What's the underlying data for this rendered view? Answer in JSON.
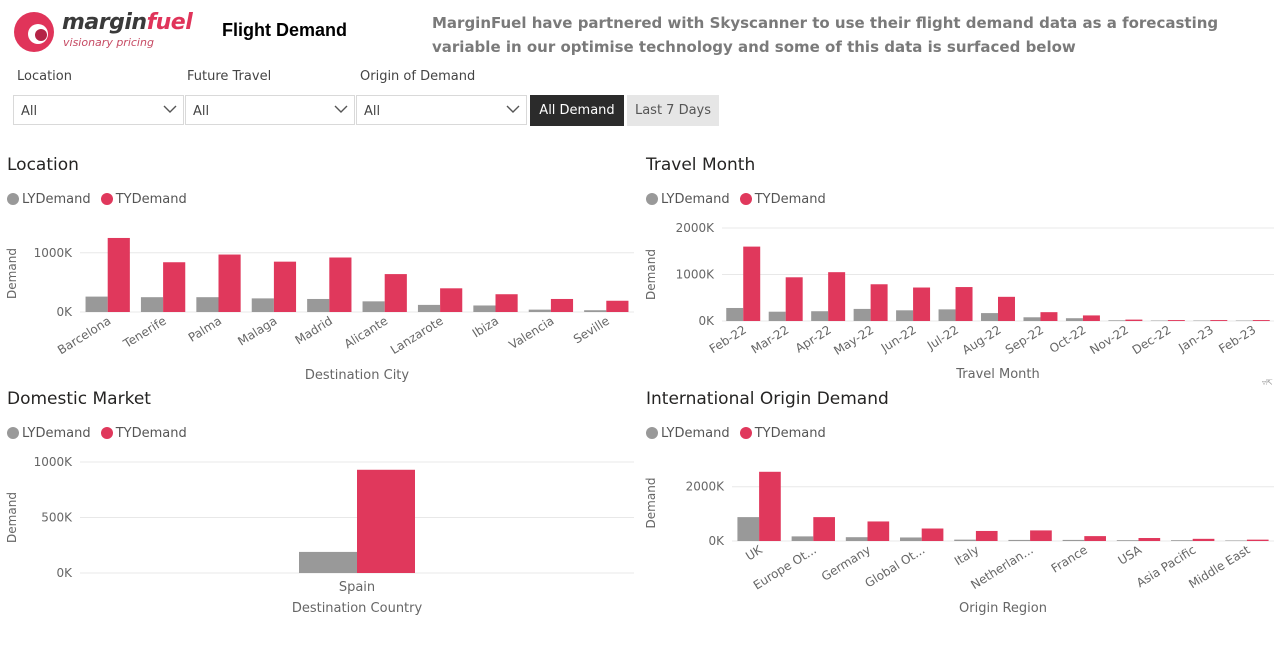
{
  "brand": {
    "name_part1": "margin",
    "name_part2": "fuel",
    "tagline": "visionary pricing",
    "color_primary": "#e0345a",
    "color_dark": "#3a3a3a"
  },
  "header": {
    "title": "Flight Demand",
    "partner_line1": "MarginFuel have partnered with Skyscanner to use their flight demand data as a forecasting",
    "partner_line2": "variable in our optimise technology and some of this data is surfaced below"
  },
  "filters": {
    "location": {
      "label": "Location",
      "value": "All"
    },
    "future_travel": {
      "label": "Future Travel",
      "value": "All"
    },
    "origin": {
      "label": "Origin of Demand",
      "value": "All"
    },
    "toggle_all": "All Demand",
    "toggle_7days": "Last 7 Days"
  },
  "colors": {
    "ly": "#999999",
    "ty": "#e0385c",
    "grid": "#e8e8e8",
    "axis_text": "#666666"
  },
  "chart_data": [
    {
      "id": "location",
      "type": "bar",
      "title": "Location",
      "xlabel": "Destination City",
      "ylabel": "Demand",
      "categories": [
        "Barcelona",
        "Tenerife",
        "Palma",
        "Malaga",
        "Madrid",
        "Alicante",
        "Lanzarote",
        "Ibiza",
        "Valencia",
        "Seville"
      ],
      "series": [
        {
          "name": "LYDemand",
          "values": [
            260000,
            250000,
            250000,
            230000,
            220000,
            180000,
            120000,
            110000,
            40000,
            30000
          ]
        },
        {
          "name": "TYDemand",
          "values": [
            1250000,
            840000,
            970000,
            850000,
            920000,
            640000,
            400000,
            300000,
            220000,
            190000
          ]
        }
      ],
      "yticks": [
        0,
        1000000
      ],
      "ytick_labels": [
        "0K",
        "1000K"
      ],
      "ylim": [
        0,
        1300000
      ],
      "legend": "top-left",
      "grid": true,
      "rotate_x": true
    },
    {
      "id": "travel-month",
      "type": "bar",
      "title": "Travel Month",
      "xlabel": "Travel Month",
      "ylabel": "Demand",
      "categories": [
        "Feb-22",
        "Mar-22",
        "Apr-22",
        "May-22",
        "Jun-22",
        "Jul-22",
        "Aug-22",
        "Sep-22",
        "Oct-22",
        "Nov-22",
        "Dec-22",
        "Jan-23",
        "Feb-23"
      ],
      "series": [
        {
          "name": "LYDemand",
          "values": [
            280000,
            200000,
            210000,
            260000,
            230000,
            250000,
            170000,
            80000,
            60000,
            15000,
            10000,
            10000,
            10000
          ]
        },
        {
          "name": "TYDemand",
          "values": [
            1600000,
            940000,
            1050000,
            790000,
            720000,
            730000,
            520000,
            190000,
            120000,
            30000,
            20000,
            20000,
            20000
          ]
        }
      ],
      "yticks": [
        0,
        1000000,
        2000000
      ],
      "ytick_labels": [
        "0K",
        "1000K",
        "2000K"
      ],
      "ylim": [
        0,
        2000000
      ],
      "legend": "top-left",
      "grid": true,
      "rotate_x": true
    },
    {
      "id": "domestic",
      "type": "bar",
      "title": "Domestic Market",
      "xlabel": "Destination Country",
      "ylabel": "Demand",
      "categories": [
        "Spain"
      ],
      "series": [
        {
          "name": "LYDemand",
          "values": [
            190000
          ]
        },
        {
          "name": "TYDemand",
          "values": [
            930000
          ]
        }
      ],
      "yticks": [
        0,
        500000,
        1000000
      ],
      "ytick_labels": [
        "0K",
        "500K",
        "1000K"
      ],
      "ylim": [
        0,
        1000000
      ],
      "legend": "top-left",
      "grid": true,
      "rotate_x": false
    },
    {
      "id": "international",
      "type": "bar",
      "title": "International Origin Demand",
      "xlabel": "Origin Region",
      "ylabel": "Demand",
      "categories": [
        "UK",
        "Europe Ot...",
        "Germany",
        "Global Ot...",
        "Italy",
        "Netherlan...",
        "France",
        "USA",
        "Asia Pacific",
        "Middle East"
      ],
      "series": [
        {
          "name": "LYDemand",
          "values": [
            880000,
            170000,
            140000,
            130000,
            50000,
            40000,
            40000,
            30000,
            30000,
            20000
          ]
        },
        {
          "name": "TYDemand",
          "values": [
            2550000,
            880000,
            720000,
            460000,
            370000,
            390000,
            180000,
            110000,
            80000,
            50000
          ]
        }
      ],
      "yticks": [
        0,
        2000000
      ],
      "ytick_labels": [
        "0K",
        "2000K"
      ],
      "ylim": [
        0,
        2800000
      ],
      "legend": "top-left",
      "grid": true,
      "rotate_x": true
    }
  ]
}
